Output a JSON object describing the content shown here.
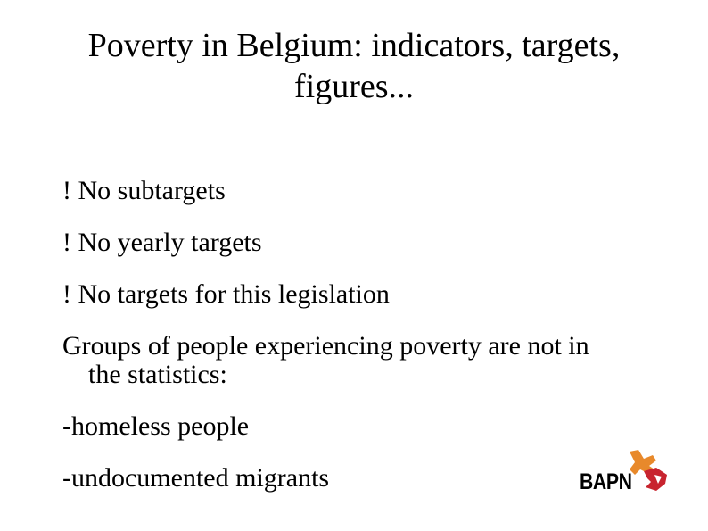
{
  "slide": {
    "title_lines": [
      "Poverty in Belgium: indicators, targets,",
      "figures..."
    ],
    "items": [
      "! No subtargets",
      "! No yearly targets",
      "! No targets for this legislation",
      "Groups of people experiencing poverty are not in",
      "the statistics:",
      "-homeless people",
      "-undocumented migrants"
    ]
  },
  "logo": {
    "text": "BAPN",
    "colors": {
      "orange": "#e8892b",
      "red": "#c8242f"
    }
  }
}
